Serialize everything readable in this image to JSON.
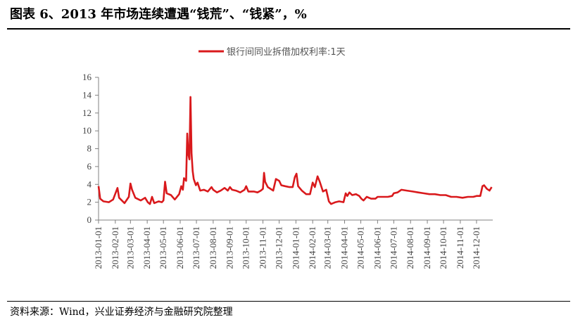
{
  "title": "图表 6、2013 年市场连续遭遇“钱荒”、“钱紧”，%",
  "source": "资料来源：Wind，兴业证券经济与金融研究院整理",
  "colors": {
    "series": "#d9191c",
    "axis": "#808080"
  },
  "chart_data": {
    "type": "line",
    "legend": "top-center",
    "grid": false,
    "ylim": [
      0,
      16
    ],
    "y_ticks": [
      "0",
      "2",
      "4",
      "6",
      "8",
      "10",
      "12",
      "14",
      "16"
    ],
    "x_ticks": [
      "2013-01-01",
      "2013-02-01",
      "2013-03-01",
      "2013-04-01",
      "2013-05-01",
      "2013-06-01",
      "2013-07-01",
      "2013-08-01",
      "2013-09-01",
      "2013-10-01",
      "2013-11-01",
      "2013-12-01",
      "2014-01-01",
      "2014-02-01",
      "2014-03-01",
      "2014-04-01",
      "2014-05-01",
      "2014-06-01",
      "2014-07-01",
      "2014-08-01",
      "2014-09-01",
      "2014-10-01",
      "2014-11-01",
      "2014-12-01"
    ],
    "xlim": [
      "2013-01-01",
      "2014-12-31"
    ],
    "series": [
      {
        "name": "银行间同业拆借加权利率:1天",
        "points": [
          [
            "2013-01-01",
            3.8
          ],
          [
            "2013-01-04",
            2.4
          ],
          [
            "2013-01-10",
            2.1
          ],
          [
            "2013-01-20",
            2.0
          ],
          [
            "2013-01-28",
            2.3
          ],
          [
            "2013-02-05",
            3.6
          ],
          [
            "2013-02-08",
            2.5
          ],
          [
            "2013-02-18",
            1.9
          ],
          [
            "2013-02-26",
            2.6
          ],
          [
            "2013-03-01",
            4.1
          ],
          [
            "2013-03-04",
            3.4
          ],
          [
            "2013-03-10",
            2.5
          ],
          [
            "2013-03-20",
            2.2
          ],
          [
            "2013-03-28",
            2.5
          ],
          [
            "2013-04-02",
            2.0
          ],
          [
            "2013-04-06",
            1.8
          ],
          [
            "2013-04-10",
            2.6
          ],
          [
            "2013-04-14",
            1.9
          ],
          [
            "2013-04-22",
            2.1
          ],
          [
            "2013-04-28",
            2.0
          ],
          [
            "2013-05-01",
            2.2
          ],
          [
            "2013-05-04",
            4.3
          ],
          [
            "2013-05-07",
            3.0
          ],
          [
            "2013-05-15",
            2.8
          ],
          [
            "2013-05-22",
            2.3
          ],
          [
            "2013-05-30",
            2.9
          ],
          [
            "2013-06-03",
            3.8
          ],
          [
            "2013-06-06",
            3.4
          ],
          [
            "2013-06-08",
            4.7
          ],
          [
            "2013-06-12",
            4.4
          ],
          [
            "2013-06-14",
            9.7
          ],
          [
            "2013-06-16",
            7.4
          ],
          [
            "2013-06-18",
            6.8
          ],
          [
            "2013-06-20",
            13.8
          ],
          [
            "2013-06-22",
            7.5
          ],
          [
            "2013-06-24",
            5.5
          ],
          [
            "2013-06-26",
            4.6
          ],
          [
            "2013-06-30",
            3.9
          ],
          [
            "2013-07-03",
            4.2
          ],
          [
            "2013-07-08",
            3.3
          ],
          [
            "2013-07-15",
            3.4
          ],
          [
            "2013-07-22",
            3.2
          ],
          [
            "2013-07-29",
            3.7
          ],
          [
            "2013-08-01",
            3.4
          ],
          [
            "2013-08-08",
            3.1
          ],
          [
            "2013-08-15",
            3.3
          ],
          [
            "2013-08-22",
            3.6
          ],
          [
            "2013-08-28",
            3.3
          ],
          [
            "2013-09-01",
            3.7
          ],
          [
            "2013-09-05",
            3.4
          ],
          [
            "2013-09-12",
            3.3
          ],
          [
            "2013-09-20",
            3.1
          ],
          [
            "2013-09-28",
            3.4
          ],
          [
            "2013-10-01",
            3.8
          ],
          [
            "2013-10-05",
            3.2
          ],
          [
            "2013-10-15",
            3.2
          ],
          [
            "2013-10-22",
            3.1
          ],
          [
            "2013-10-28",
            3.3
          ],
          [
            "2013-11-01",
            3.5
          ],
          [
            "2013-11-03",
            5.3
          ],
          [
            "2013-11-05",
            4.3
          ],
          [
            "2013-11-10",
            3.7
          ],
          [
            "2013-11-15",
            3.5
          ],
          [
            "2013-11-20",
            3.3
          ],
          [
            "2013-11-25",
            4.6
          ],
          [
            "2013-12-01",
            4.4
          ],
          [
            "2013-12-05",
            3.9
          ],
          [
            "2013-12-12",
            3.8
          ],
          [
            "2013-12-20",
            3.7
          ],
          [
            "2013-12-26",
            3.7
          ],
          [
            "2013-12-30",
            4.8
          ],
          [
            "2014-01-02",
            5.2
          ],
          [
            "2014-01-05",
            3.8
          ],
          [
            "2014-01-12",
            3.3
          ],
          [
            "2014-01-20",
            2.9
          ],
          [
            "2014-01-27",
            2.9
          ],
          [
            "2014-02-01",
            4.2
          ],
          [
            "2014-02-05",
            3.7
          ],
          [
            "2014-02-10",
            4.9
          ],
          [
            "2014-02-14",
            4.3
          ],
          [
            "2014-02-20",
            3.2
          ],
          [
            "2014-02-26",
            3.4
          ],
          [
            "2014-03-03",
            2.1
          ],
          [
            "2014-03-07",
            1.8
          ],
          [
            "2014-03-15",
            2.0
          ],
          [
            "2014-03-22",
            2.1
          ],
          [
            "2014-03-30",
            2.0
          ],
          [
            "2014-04-03",
            3.0
          ],
          [
            "2014-04-06",
            2.7
          ],
          [
            "2014-04-10",
            3.1
          ],
          [
            "2014-04-15",
            2.8
          ],
          [
            "2014-04-22",
            2.9
          ],
          [
            "2014-04-28",
            2.7
          ],
          [
            "2014-05-02",
            2.4
          ],
          [
            "2014-05-06",
            2.2
          ],
          [
            "2014-05-12",
            2.6
          ],
          [
            "2014-05-20",
            2.4
          ],
          [
            "2014-05-28",
            2.4
          ],
          [
            "2014-06-01",
            2.6
          ],
          [
            "2014-06-10",
            2.6
          ],
          [
            "2014-06-20",
            2.6
          ],
          [
            "2014-06-28",
            2.7
          ],
          [
            "2014-07-01",
            3.0
          ],
          [
            "2014-07-08",
            3.1
          ],
          [
            "2014-07-15",
            3.4
          ],
          [
            "2014-07-25",
            3.3
          ],
          [
            "2014-08-05",
            3.2
          ],
          [
            "2014-08-15",
            3.1
          ],
          [
            "2014-08-25",
            3.0
          ],
          [
            "2014-09-05",
            2.9
          ],
          [
            "2014-09-15",
            2.9
          ],
          [
            "2014-09-25",
            2.8
          ],
          [
            "2014-10-05",
            2.8
          ],
          [
            "2014-10-15",
            2.6
          ],
          [
            "2014-10-25",
            2.6
          ],
          [
            "2014-11-05",
            2.5
          ],
          [
            "2014-11-15",
            2.6
          ],
          [
            "2014-11-25",
            2.6
          ],
          [
            "2014-12-01",
            2.7
          ],
          [
            "2014-12-08",
            2.7
          ],
          [
            "2014-12-12",
            3.8
          ],
          [
            "2014-12-15",
            3.9
          ],
          [
            "2014-12-20",
            3.5
          ],
          [
            "2014-12-25",
            3.3
          ],
          [
            "2014-12-29",
            3.7
          ]
        ]
      }
    ]
  }
}
